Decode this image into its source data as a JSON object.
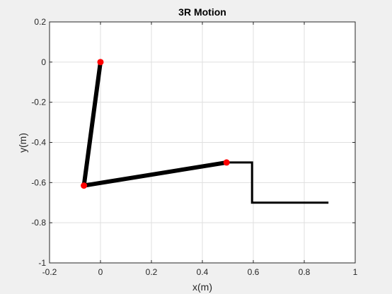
{
  "chart_data": {
    "type": "line",
    "title": "3R Motion",
    "xlabel": "x(m)",
    "ylabel": "y(m)",
    "xlim": [
      -0.2,
      1.0
    ],
    "ylim": [
      -1.0,
      0.2
    ],
    "xticks": [
      "-0.2",
      "0",
      "0.2",
      "0.4",
      "0.6",
      "0.8",
      "1"
    ],
    "yticks": [
      "-1",
      "-0.8",
      "-0.6",
      "-0.4",
      "-0.2",
      "0",
      "0.2"
    ],
    "grid": true,
    "series": [
      {
        "kind": "robot-arm-links",
        "x": [
          0.0,
          -0.065,
          0.495
        ],
        "y": [
          0.0,
          -0.615,
          -0.5
        ],
        "color": "#000000"
      },
      {
        "kind": "joints",
        "x": [
          0.0,
          -0.065,
          0.495
        ],
        "y": [
          0.0,
          -0.615,
          -0.5
        ],
        "color": "#ff0000"
      },
      {
        "kind": "end-effector",
        "x": [
          0.495,
          0.595,
          0.595,
          0.895
        ],
        "y": [
          -0.5,
          -0.5,
          -0.7,
          -0.7
        ],
        "color": "#000000"
      }
    ]
  }
}
